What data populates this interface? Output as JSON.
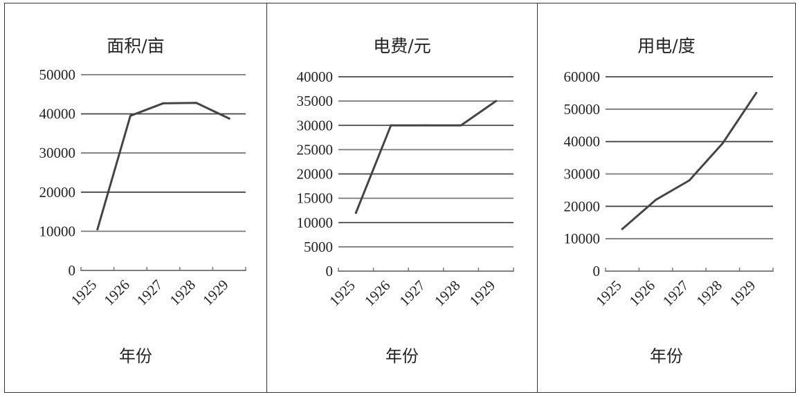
{
  "xlabel": "年份",
  "chart_data": [
    {
      "type": "line",
      "title": "面积/亩",
      "xlabel": "年份",
      "categories": [
        "1925",
        "1926",
        "1927",
        "1928",
        "1929"
      ],
      "values": [
        10500,
        39500,
        42700,
        42800,
        38800
      ],
      "ylim": [
        0,
        50000
      ],
      "yticks": [
        0,
        10000,
        20000,
        30000,
        40000,
        50000
      ],
      "grid": true,
      "line_color": "#444444"
    },
    {
      "type": "line",
      "title": "电费/元",
      "xlabel": "年份",
      "categories": [
        "1925",
        "1926",
        "1927",
        "1928",
        "1929"
      ],
      "values": [
        12000,
        30000,
        30000,
        30000,
        35000
      ],
      "ylim": [
        0,
        40000
      ],
      "yticks": [
        0,
        5000,
        10000,
        15000,
        20000,
        25000,
        30000,
        35000,
        40000
      ],
      "grid": true,
      "line_color": "#444444"
    },
    {
      "type": "line",
      "title": "用电/度",
      "xlabel": "年份",
      "categories": [
        "1925",
        "1926",
        "1927",
        "1928",
        "1929"
      ],
      "values": [
        13000,
        22000,
        28000,
        39500,
        55000
      ],
      "ylim": [
        0,
        60000
      ],
      "yticks": [
        0,
        10000,
        20000,
        30000,
        40000,
        50000,
        60000
      ],
      "grid": true,
      "line_color": "#444444"
    }
  ]
}
